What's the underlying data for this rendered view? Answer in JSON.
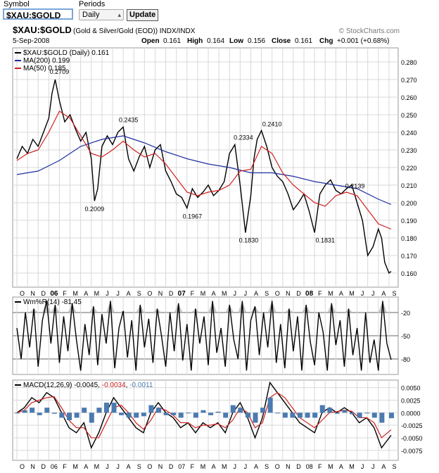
{
  "form": {
    "symbol_label": "Symbol",
    "periods_label": "Periods",
    "symbol_value": "$XAU:$GOLD",
    "periods_value": "Daily",
    "update_label": "Update"
  },
  "header": {
    "ticker": "$XAU:$GOLD",
    "description": "(Gold & Silver/Gold (EOD)) INDX/INDX",
    "watermark": "© StockCharts.com",
    "date": "5-Sep-2008",
    "open_label": "Open",
    "open": "0.161",
    "high_label": "High",
    "high": "0.164",
    "low_label": "Low",
    "low": "0.156",
    "close_label": "Close",
    "close": "0.161",
    "chg_label": "Chg",
    "chg": "+0.001 (+0.68%)"
  },
  "colors": {
    "price": "#000000",
    "ma200": "#1f2fa0",
    "ma50": "#d02020",
    "histogram": "#4a7ab0",
    "grid": "#d8d8d8",
    "wmr_fill": "#b0b0b0"
  },
  "chart_data": [
    {
      "type": "line",
      "panel": "price",
      "legend": [
        {
          "text": "$XAU:$GOLD (Daily) 0.161",
          "color": "#000000"
        },
        {
          "text": "MA(200) 0.199",
          "color": "#1f2fa0"
        },
        {
          "text": "MA(50) 0.185",
          "color": "#d02020"
        }
      ],
      "ylim": [
        0.152,
        0.288
      ],
      "yticks": [
        0.28,
        0.27,
        0.26,
        0.25,
        0.24,
        0.23,
        0.22,
        0.21,
        0.2,
        0.19,
        0.18,
        0.17,
        0.16
      ],
      "x_labels": [
        "O",
        "N",
        "D",
        "06",
        "F",
        "M",
        "A",
        "M",
        "J",
        "J",
        "A",
        "S",
        "O",
        "N",
        "D",
        "07",
        "F",
        "M",
        "A",
        "M",
        "J",
        "J",
        "A",
        "S",
        "O",
        "N",
        "D",
        "08",
        "F",
        "M",
        "A",
        "M",
        "J",
        "J",
        "A",
        "S"
      ],
      "x_bold": [
        "06",
        "07",
        "08"
      ],
      "grid": true,
      "series": [
        {
          "name": "$XAU:$GOLD",
          "color": "#000000",
          "x": [
            0,
            0.5,
            1,
            1.5,
            2,
            2.5,
            3,
            3.3,
            3.6,
            4,
            4.5,
            5,
            5.5,
            6,
            6.5,
            7,
            7.3,
            7.6,
            8,
            8.5,
            9,
            9.5,
            10,
            10.5,
            11,
            11.5,
            12,
            12.5,
            13,
            13.5,
            14,
            14.5,
            15,
            15.5,
            16,
            16.5,
            17,
            17.5,
            18,
            18.5,
            19,
            19.5,
            20,
            20.5,
            21,
            21.5,
            22,
            22.3,
            22.6,
            23,
            23.5,
            24,
            24.5,
            25,
            25.5,
            26,
            26.5,
            27,
            27.5,
            28,
            28.5,
            29,
            29.5,
            30,
            30.5,
            31,
            31.5,
            32,
            32.5,
            33,
            33.5,
            34,
            34.3,
            34.6,
            35,
            35.2
          ],
          "y": [
            0.225,
            0.232,
            0.228,
            0.236,
            0.232,
            0.24,
            0.248,
            0.262,
            0.27,
            0.258,
            0.246,
            0.25,
            0.242,
            0.235,
            0.24,
            0.225,
            0.201,
            0.208,
            0.232,
            0.238,
            0.233,
            0.24,
            0.243,
            0.225,
            0.218,
            0.226,
            0.232,
            0.22,
            0.23,
            0.233,
            0.218,
            0.212,
            0.205,
            0.203,
            0.197,
            0.208,
            0.203,
            0.206,
            0.21,
            0.204,
            0.207,
            0.212,
            0.228,
            0.233,
            0.21,
            0.183,
            0.204,
            0.225,
            0.236,
            0.241,
            0.232,
            0.22,
            0.215,
            0.212,
            0.205,
            0.196,
            0.2,
            0.205,
            0.195,
            0.183,
            0.205,
            0.21,
            0.213,
            0.207,
            0.205,
            0.208,
            0.21,
            0.2,
            0.19,
            0.17,
            0.175,
            0.185,
            0.18,
            0.166,
            0.16,
            0.161
          ]
        },
        {
          "name": "MA(200)",
          "color": "#1f2fa0",
          "x": [
            0,
            2,
            4,
            6,
            8,
            10,
            12,
            14,
            16,
            18,
            20,
            22,
            24,
            26,
            28,
            30,
            32,
            34,
            35.2
          ],
          "y": [
            0.216,
            0.218,
            0.224,
            0.232,
            0.236,
            0.238,
            0.234,
            0.229,
            0.225,
            0.222,
            0.22,
            0.217,
            0.217,
            0.215,
            0.212,
            0.21,
            0.208,
            0.202,
            0.199
          ]
        },
        {
          "name": "MA(50)",
          "color": "#d02020",
          "x": [
            0,
            1,
            2,
            3,
            4,
            5,
            6,
            7,
            8,
            9,
            10,
            11,
            12,
            13,
            14,
            15,
            16,
            17,
            18,
            19,
            20,
            21,
            22,
            23,
            24,
            25,
            26,
            27,
            28,
            29,
            30,
            31,
            32,
            33,
            34,
            35.2
          ],
          "y": [
            0.224,
            0.228,
            0.23,
            0.24,
            0.252,
            0.248,
            0.238,
            0.228,
            0.226,
            0.23,
            0.235,
            0.23,
            0.226,
            0.228,
            0.222,
            0.214,
            0.206,
            0.204,
            0.206,
            0.207,
            0.21,
            0.218,
            0.219,
            0.232,
            0.228,
            0.217,
            0.21,
            0.205,
            0.2,
            0.198,
            0.204,
            0.206,
            0.204,
            0.196,
            0.188,
            0.185
          ]
        }
      ],
      "annotations": [
        {
          "x": 4.0,
          "y": 0.2709,
          "text": "0.2709"
        },
        {
          "x": 7.3,
          "y": 0.2009,
          "text": "0.2009"
        },
        {
          "x": 10.5,
          "y": 0.2435,
          "text": "0.2435"
        },
        {
          "x": 16.5,
          "y": 0.1967,
          "text": "0.1967"
        },
        {
          "x": 21.3,
          "y": 0.2334,
          "text": "0.2334"
        },
        {
          "x": 21.8,
          "y": 0.183,
          "text": "0.1830"
        },
        {
          "x": 24.0,
          "y": 0.241,
          "text": "0.2410"
        },
        {
          "x": 29.0,
          "y": 0.1831,
          "text": "0.1831"
        },
        {
          "x": 31.8,
          "y": 0.2139,
          "text": "0.2139"
        }
      ]
    },
    {
      "type": "line",
      "panel": "williams",
      "legend": [
        {
          "text": "Wm%R(14) -81.45",
          "color": "#000000"
        }
      ],
      "ylim": [
        -100,
        0
      ],
      "yticks": [
        -20,
        -50,
        -80
      ],
      "series": [
        {
          "name": "Wm%R(14)",
          "color": "#000000",
          "x": [
            0,
            0.4,
            0.8,
            1.2,
            1.6,
            2,
            2.4,
            2.8,
            3.2,
            3.6,
            4,
            4.4,
            4.8,
            5.2,
            5.6,
            6,
            6.4,
            6.8,
            7.2,
            7.6,
            8,
            8.4,
            8.8,
            9.2,
            9.6,
            10,
            10.4,
            10.8,
            11.2,
            11.6,
            12,
            12.4,
            12.8,
            13.2,
            13.6,
            14,
            14.4,
            14.8,
            15.2,
            15.6,
            16,
            16.4,
            16.8,
            17.2,
            17.6,
            18,
            18.4,
            18.8,
            19.2,
            19.6,
            20,
            20.4,
            20.8,
            21.2,
            21.6,
            22,
            22.4,
            22.8,
            23.2,
            23.6,
            24,
            24.4,
            24.8,
            25.2,
            25.6,
            26,
            26.4,
            26.8,
            27.2,
            27.6,
            28,
            28.4,
            28.8,
            29.2,
            29.6,
            30,
            30.4,
            30.8,
            31.2,
            31.6,
            32,
            32.4,
            32.8,
            33.2,
            33.6,
            34,
            34.4,
            34.8,
            35.2
          ],
          "y": [
            -40,
            -80,
            -20,
            -65,
            -15,
            -90,
            -30,
            -5,
            -60,
            -10,
            -85,
            -25,
            -70,
            -8,
            -55,
            -95,
            -35,
            -75,
            -12,
            -88,
            -22,
            -60,
            -5,
            -92,
            -40,
            -18,
            -78,
            -30,
            -95,
            -10,
            -65,
            -28,
            -85,
            -15,
            -50,
            -90,
            -20,
            -70,
            -8,
            -82,
            -35,
            -95,
            -15,
            -60,
            -25,
            -88,
            -5,
            -72,
            -40,
            -90,
            -10,
            -55,
            -80,
            -5,
            -95,
            -30,
            -12,
            -75,
            -20,
            -65,
            -5,
            -85,
            -35,
            -92,
            -15,
            -70,
            -25,
            -95,
            -10,
            -58,
            -88,
            -20,
            -45,
            -95,
            -8,
            -62,
            -30,
            -90,
            -15,
            -75,
            -40,
            -95,
            -20,
            -85,
            -55,
            -95,
            -5,
            -60,
            -81
          ]
        }
      ]
    },
    {
      "type": "line",
      "panel": "macd",
      "legend": [
        {
          "text": "MACD(12,26,9)",
          "color": "#000000",
          "value": "-0.0045",
          "value_color": "#000000"
        },
        {
          "text": "",
          "color": "#d02020",
          "value": "-0.0034",
          "value_color": "#d02020"
        },
        {
          "text": "",
          "color": "#4a7ab0",
          "value": "-0.0011",
          "value_color": "#4a7ab0"
        }
      ],
      "ylim": [
        -0.0095,
        0.0065
      ],
      "yticks": [
        0.005,
        0.0025,
        0.0,
        -0.0025,
        -0.005,
        -0.0075
      ],
      "x_labels": [
        "O",
        "N",
        "D",
        "06",
        "F",
        "M",
        "A",
        "M",
        "J",
        "J",
        "A",
        "S",
        "O",
        "N",
        "D",
        "07",
        "F",
        "M",
        "A",
        "M",
        "J",
        "J",
        "A",
        "S",
        "O",
        "N",
        "D",
        "08",
        "F",
        "M",
        "A",
        "M",
        "J",
        "J",
        "A",
        "S"
      ],
      "series": [
        {
          "name": "MACD",
          "color": "#000000",
          "x": [
            0,
            0.7,
            1.4,
            2.1,
            2.8,
            3.5,
            4.2,
            4.9,
            5.6,
            6.3,
            7,
            7.7,
            8.4,
            9.1,
            9.8,
            10.5,
            11.2,
            11.9,
            12.6,
            13.3,
            14,
            14.7,
            15.4,
            16.1,
            16.8,
            17.5,
            18.2,
            18.9,
            19.6,
            20.3,
            21,
            21.7,
            22.4,
            23.1,
            23.8,
            24.5,
            25.2,
            25.9,
            26.6,
            27.3,
            28,
            28.7,
            29.4,
            30.1,
            30.8,
            31.5,
            32.2,
            32.9,
            33.6,
            34.3,
            35.2
          ],
          "y": [
            0.0,
            0.001,
            0.003,
            0.002,
            0.004,
            0.003,
            0.0,
            -0.003,
            -0.004,
            -0.002,
            -0.007,
            -0.004,
            0.0,
            0.003,
            0.001,
            -0.001,
            -0.003,
            -0.004,
            0.0,
            0.002,
            0.0,
            -0.001,
            -0.003,
            -0.002,
            -0.004,
            -0.002,
            -0.003,
            -0.002,
            -0.004,
            0.0,
            0.002,
            -0.001,
            -0.005,
            -0.001,
            0.006,
            0.004,
            0.002,
            0.0,
            -0.002,
            -0.003,
            -0.004,
            0.0,
            0.001,
            0.0,
            0.001,
            0.0,
            -0.002,
            -0.001,
            -0.003,
            -0.007,
            -0.0045
          ]
        },
        {
          "name": "Signal",
          "color": "#d02020",
          "x": [
            0,
            0.7,
            1.4,
            2.1,
            2.8,
            3.5,
            4.2,
            4.9,
            5.6,
            6.3,
            7,
            7.7,
            8.4,
            9.1,
            9.8,
            10.5,
            11.2,
            11.9,
            12.6,
            13.3,
            14,
            14.7,
            15.4,
            16.1,
            16.8,
            17.5,
            18.2,
            18.9,
            19.6,
            20.3,
            21,
            21.7,
            22.4,
            23.1,
            23.8,
            24.5,
            25.2,
            25.9,
            26.6,
            27.3,
            28,
            28.7,
            29.4,
            30.1,
            30.8,
            31.5,
            32.2,
            32.9,
            33.6,
            34.3,
            35.2
          ],
          "y": [
            0.0,
            0.0005,
            0.002,
            0.0025,
            0.003,
            0.0032,
            0.001,
            -0.0015,
            -0.003,
            -0.003,
            -0.005,
            -0.005,
            -0.002,
            0.001,
            0.0015,
            0.0,
            -0.002,
            -0.0033,
            -0.0015,
            0.001,
            0.0005,
            -0.0005,
            -0.002,
            -0.002,
            -0.003,
            -0.0025,
            -0.0025,
            -0.0022,
            -0.003,
            -0.0015,
            0.001,
            0.0,
            -0.003,
            -0.002,
            0.003,
            0.004,
            0.003,
            0.001,
            -0.001,
            -0.002,
            -0.003,
            -0.0015,
            0.0,
            0.0002,
            0.0005,
            0.0003,
            -0.001,
            -0.001,
            -0.002,
            -0.005,
            -0.0034
          ]
        },
        {
          "name": "Histogram",
          "color": "#4a7ab0",
          "x": [
            0,
            0.7,
            1.4,
            2.1,
            2.8,
            3.5,
            4.2,
            4.9,
            5.6,
            6.3,
            7,
            7.7,
            8.4,
            9.1,
            9.8,
            10.5,
            11.2,
            11.9,
            12.6,
            13.3,
            14,
            14.7,
            15.4,
            16.1,
            16.8,
            17.5,
            18.2,
            18.9,
            19.6,
            20.3,
            21,
            21.7,
            22.4,
            23.1,
            23.8,
            24.5,
            25.2,
            25.9,
            26.6,
            27.3,
            28,
            28.7,
            29.4,
            30.1,
            30.8,
            31.5,
            32.2,
            32.9,
            33.6,
            34.3,
            35.2
          ],
          "y": [
            0.0,
            0.0005,
            0.001,
            -0.0005,
            0.001,
            -0.0002,
            -0.001,
            -0.0015,
            -0.001,
            0.001,
            -0.002,
            0.001,
            0.002,
            0.002,
            -0.0005,
            -0.001,
            -0.001,
            -0.0007,
            0.0015,
            0.001,
            -0.0005,
            -0.0005,
            -0.001,
            0.0,
            -0.001,
            0.0005,
            -0.0005,
            0.0002,
            -0.001,
            0.0015,
            0.001,
            -0.001,
            -0.002,
            0.001,
            0.003,
            0.0,
            -0.001,
            -0.001,
            -0.001,
            -0.001,
            -0.001,
            0.0015,
            0.001,
            -0.0002,
            0.0005,
            -0.0003,
            -0.001,
            0.0,
            -0.001,
            -0.002,
            -0.0011
          ]
        }
      ]
    }
  ]
}
